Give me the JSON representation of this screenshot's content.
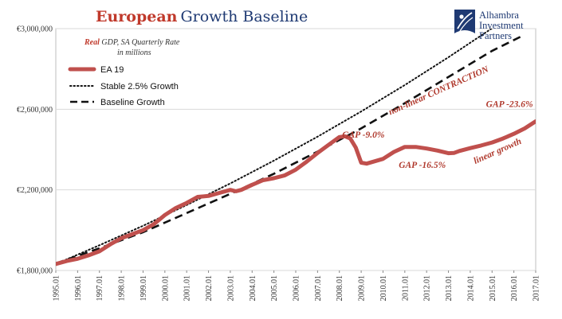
{
  "colors": {
    "series_actual": "#c0504d",
    "series_stable": "#111111",
    "series_baseline": "#111111",
    "title_accent": "#c0392b",
    "title_main": "#1f3a73",
    "annotation": "#b03a2e",
    "logo": "#1f3a73"
  },
  "title": {
    "part1": "European",
    "part2": "Growth Baseline"
  },
  "subtitle": {
    "em": "Real",
    "line1_rest": " GDP, SA Quarterly Rate",
    "line2": "in millions"
  },
  "logo": {
    "line1": "Alhambra",
    "line2": "Investment",
    "line3": "Partners",
    "icon": "alhambra-logo-icon"
  },
  "legend": {
    "placement": "top-left",
    "items": [
      {
        "label": "EA 19",
        "style": "solid-thick"
      },
      {
        "label": "Stable 2.5% Growth",
        "style": "dotted"
      },
      {
        "label": "Baseline Growth",
        "style": "dashed"
      }
    ]
  },
  "annotations": [
    {
      "text": "non-linear CONTRACTION",
      "x": 2012.6,
      "y": 2680000,
      "color": "annotation"
    },
    {
      "text": "GAP -23.6%",
      "x": 2015.8,
      "y": 2612000,
      "color": "annotation"
    },
    {
      "text": "GAP -9.0%",
      "x": 2009.1,
      "y": 2460000,
      "color": "annotation"
    },
    {
      "text": "GAP -16.5%",
      "x": 2011.8,
      "y": 2310000,
      "color": "annotation"
    },
    {
      "text": "linear growth",
      "x": 2015.3,
      "y": 2380000,
      "color": "annotation"
    }
  ],
  "chart_data": {
    "type": "line",
    "title": "European Growth Baseline",
    "subtitle": "Real GDP, SA Quarterly Rate in millions",
    "xlabel": "",
    "ylabel": "",
    "xlim": [
      1995.0,
      2017.0
    ],
    "ylim": [
      1800000,
      3000000
    ],
    "y_ticks": [
      1800000,
      2200000,
      2600000,
      3000000
    ],
    "y_tick_labels": [
      "€1,800,000",
      "€2,200,000",
      "€2,600,000",
      "€3,000,000"
    ],
    "x_ticks": [
      1995,
      1996,
      1997,
      1998,
      1999,
      2000,
      2001,
      2002,
      2003,
      2004,
      2005,
      2006,
      2007,
      2008,
      2009,
      2010,
      2011,
      2012,
      2013,
      2014,
      2015,
      2016,
      2017
    ],
    "x_tick_labels": [
      "1995.01",
      "1996.01",
      "1997.01",
      "1998.01",
      "1999.01",
      "2000.01",
      "2001.01",
      "2002.01",
      "2003.01",
      "2004.01",
      "2005.01",
      "2006.01",
      "2007.01",
      "2008.01",
      "2009.01",
      "2010.01",
      "2011.01",
      "2012.01",
      "2013.01",
      "2014.01",
      "2015.01",
      "2016.01",
      "2017.01"
    ],
    "grid": {
      "horizontal": true,
      "vertical": false
    },
    "series": [
      {
        "name": "EA 19",
        "style": "solid",
        "x": [
          1995.0,
          1995.5,
          1996.0,
          1996.5,
          1997.0,
          1997.5,
          1998.0,
          1998.5,
          1999.0,
          1999.5,
          2000.0,
          2000.5,
          2001.0,
          2001.5,
          2002.0,
          2002.5,
          2003.0,
          2003.25,
          2003.5,
          2004.0,
          2004.5,
          2005.0,
          2005.5,
          2006.0,
          2006.5,
          2007.0,
          2007.5,
          2008.0,
          2008.25,
          2008.5,
          2008.75,
          2009.0,
          2009.25,
          2009.5,
          2010.0,
          2010.5,
          2011.0,
          2011.25,
          2011.5,
          2012.0,
          2012.5,
          2013.0,
          2013.25,
          2013.5,
          2014.0,
          2014.5,
          2015.0,
          2015.5,
          2016.0,
          2016.5,
          2017.0
        ],
        "values": [
          1832000,
          1847000,
          1858000,
          1875000,
          1895000,
          1930000,
          1960000,
          1980000,
          2000000,
          2030000,
          2075000,
          2110000,
          2135000,
          2165000,
          2170000,
          2185000,
          2200000,
          2193000,
          2200000,
          2225000,
          2248000,
          2258000,
          2272000,
          2300000,
          2340000,
          2383000,
          2423000,
          2462000,
          2466000,
          2455000,
          2410000,
          2335000,
          2330000,
          2338000,
          2354000,
          2388000,
          2413000,
          2413000,
          2413000,
          2405000,
          2395000,
          2382000,
          2383000,
          2393000,
          2407000,
          2420000,
          2435000,
          2455000,
          2478000,
          2505000,
          2540000
        ]
      },
      {
        "name": "Stable 2.5% Growth",
        "style": "dotted",
        "x": [
          1995.0,
          1997.0,
          1999.0,
          2001.0,
          2003.0,
          2005.0,
          2007.0,
          2009.0,
          2011.0,
          2013.0,
          2015.0,
          2015.8
        ],
        "values": [
          1832000,
          1925000,
          2022000,
          2125000,
          2232000,
          2345000,
          2464000,
          2589000,
          2720000,
          2858000,
          3002000,
          3050000
        ]
      },
      {
        "name": "Baseline Growth",
        "style": "dashed",
        "x": [
          1995.0,
          1997.0,
          1999.0,
          2001.0,
          2003.0,
          2005.0,
          2007.0,
          2009.0,
          2011.0,
          2013.0,
          2015.0,
          2016.4
        ],
        "values": [
          1835000,
          1910000,
          1990000,
          2085000,
          2180000,
          2280000,
          2390000,
          2505000,
          2630000,
          2760000,
          2890000,
          2965000
        ]
      }
    ]
  }
}
